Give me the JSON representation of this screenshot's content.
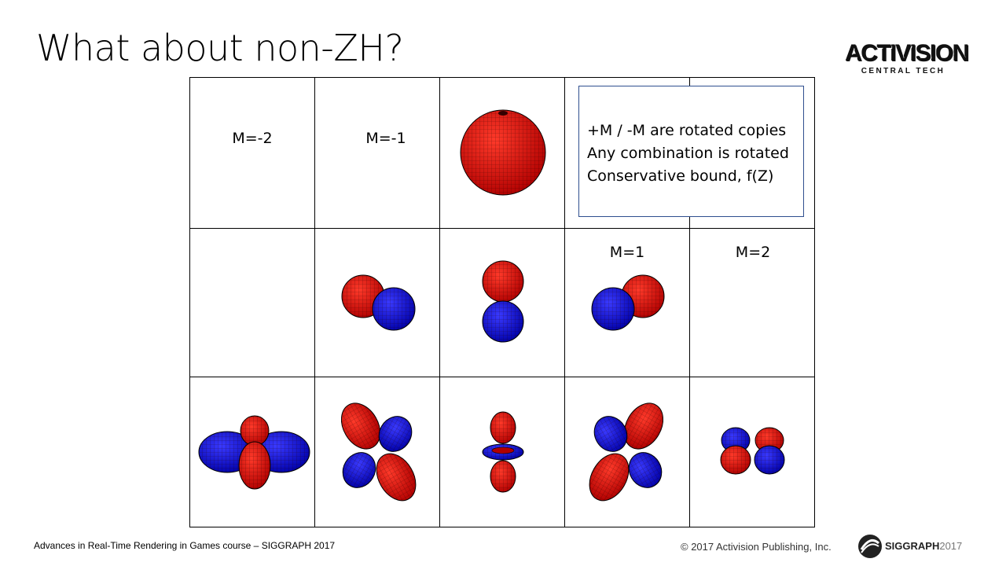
{
  "slide": {
    "title": "What about non-ZH?"
  },
  "logo": {
    "main": "ACTIVISION",
    "sub": "CENTRAL TECH"
  },
  "grid": {
    "labels": {
      "m_minus_2": "M=-2",
      "m_minus_1": "M=-1",
      "m_plus_1": "M=1",
      "m_plus_2": "M=2"
    },
    "lobe_colors": {
      "positive": "#e0140f",
      "negative": "#1414e0",
      "mesh": "#1a0000"
    },
    "rows": [
      {
        "band": 0,
        "cells": [
          "M=-2 label",
          "M=-1 label",
          "sphere",
          "callout",
          "callout"
        ]
      },
      {
        "band": 1,
        "cells": [
          "empty",
          "lobes-diagonal",
          "lobes-vertical",
          "M=1 lobes-diagonal",
          "M=2 label"
        ]
      },
      {
        "band": 2,
        "cells": [
          "clover-horizontal",
          "clover-diagonal",
          "zonal-torus",
          "clover-diagonal",
          "clover-small"
        ]
      }
    ]
  },
  "callout": {
    "lines": [
      "+M / -M are rotated copies",
      "Any combination is rotated",
      "Conservative bound, f(Z)"
    ]
  },
  "footer": {
    "course": "Advances in Real-Time Rendering in Games course – SIGGRAPH 2017",
    "copyright": "© 2017 Activision Publishing, Inc.",
    "siggraph_bold": "SIGGRAPH",
    "siggraph_year": "2017"
  }
}
